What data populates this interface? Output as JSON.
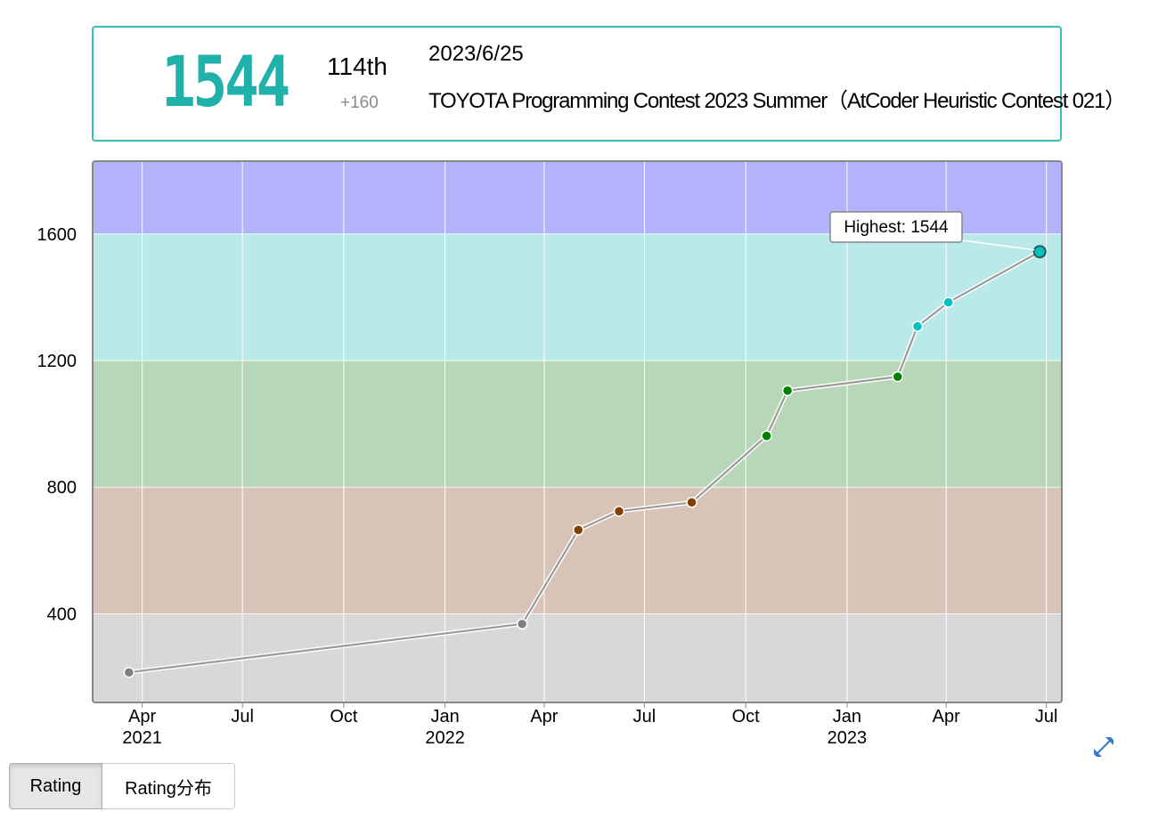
{
  "header": {
    "rating": "1544",
    "rank": "114th",
    "diff": "+160",
    "date": "2023/6/25",
    "contest": "TOYOTA Programming Contest 2023 Summer（AtCoder Heuristic Contest 021）",
    "rating_color": "#20b2aa"
  },
  "chart_data": {
    "type": "line",
    "x_axis_type": "date",
    "ylim": [
      120,
      1830
    ],
    "xlim": [
      "2021-02-15",
      "2023-07-15"
    ],
    "y_ticks": [
      400,
      800,
      1200,
      1600
    ],
    "x_ticks": [
      {
        "date": "2021-04-01",
        "label": "Apr",
        "year": "2021"
      },
      {
        "date": "2021-07-01",
        "label": "Jul",
        "year": ""
      },
      {
        "date": "2021-10-01",
        "label": "Oct",
        "year": ""
      },
      {
        "date": "2022-01-01",
        "label": "Jan",
        "year": "2022"
      },
      {
        "date": "2022-04-01",
        "label": "Apr",
        "year": ""
      },
      {
        "date": "2022-07-01",
        "label": "Jul",
        "year": ""
      },
      {
        "date": "2022-10-01",
        "label": "Oct",
        "year": ""
      },
      {
        "date": "2023-01-01",
        "label": "Jan",
        "year": "2023"
      },
      {
        "date": "2023-04-01",
        "label": "Apr",
        "year": ""
      },
      {
        "date": "2023-07-01",
        "label": "Jul",
        "year": ""
      }
    ],
    "bands": [
      {
        "from": 0,
        "to": 400,
        "color": "#d8d8d8"
      },
      {
        "from": 400,
        "to": 800,
        "color": "#d8c4b7"
      },
      {
        "from": 800,
        "to": 1200,
        "color": "#b8d6b8"
      },
      {
        "from": 1200,
        "to": 1600,
        "color": "#b9e9e8"
      },
      {
        "from": 1600,
        "to": 2000,
        "color": "#b3b3fb"
      }
    ],
    "point_colors": [
      {
        "max": 400,
        "color": "#808080"
      },
      {
        "max": 800,
        "color": "#804000"
      },
      {
        "max": 1200,
        "color": "#008000"
      },
      {
        "max": 1600,
        "color": "#00c0c0"
      }
    ],
    "points": [
      {
        "x": "2021-03-20",
        "y": 215
      },
      {
        "x": "2022-03-12",
        "y": 368
      },
      {
        "x": "2022-05-02",
        "y": 665
      },
      {
        "x": "2022-06-08",
        "y": 724
      },
      {
        "x": "2022-08-13",
        "y": 752
      },
      {
        "x": "2022-10-20",
        "y": 962
      },
      {
        "x": "2022-11-08",
        "y": 1105
      },
      {
        "x": "2023-02-16",
        "y": 1149
      },
      {
        "x": "2023-03-06",
        "y": 1308
      },
      {
        "x": "2023-04-03",
        "y": 1384
      },
      {
        "x": "2023-06-25",
        "y": 1544
      }
    ],
    "highlight": {
      "label": "Highest: 1544",
      "index": 10
    }
  },
  "tabs": [
    "Rating",
    "Rating分布"
  ]
}
